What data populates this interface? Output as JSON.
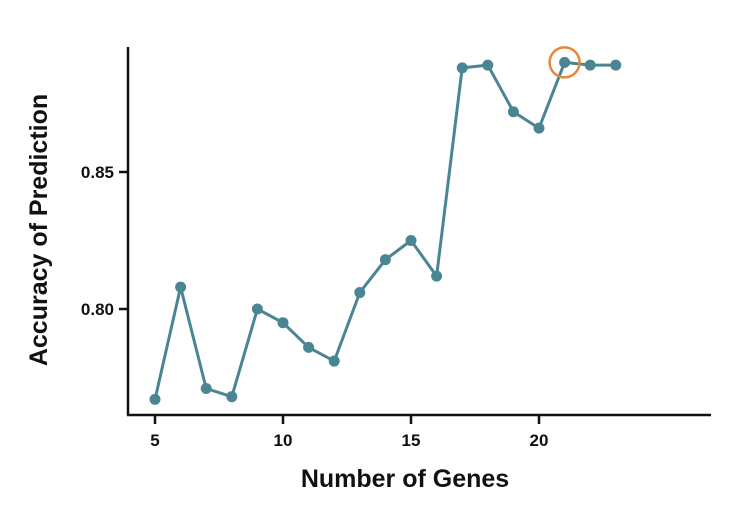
{
  "chart_data": {
    "type": "line",
    "title": "",
    "xlabel": "Number of Genes",
    "ylabel": "Accuracy of Prediction",
    "x": [
      5,
      6,
      7,
      8,
      9,
      10,
      11,
      12,
      13,
      14,
      15,
      16,
      17,
      18,
      19,
      20,
      21,
      22,
      23
    ],
    "series": [
      {
        "name": "Accuracy",
        "color": "#4a8593",
        "values": [
          0.767,
          0.808,
          0.771,
          0.768,
          0.8,
          0.795,
          0.786,
          0.781,
          0.806,
          0.818,
          0.825,
          0.812,
          0.888,
          0.889,
          0.872,
          0.866,
          0.89,
          0.889,
          0.889
        ]
      }
    ],
    "highlight": {
      "x": 21,
      "y": 0.89,
      "marker": "circle",
      "color": "#e8873a"
    },
    "xticks": [
      5,
      10,
      15,
      20
    ],
    "xtick_labels": [
      "5",
      "10",
      "15",
      "20"
    ],
    "yticks": [
      0.8,
      0.85
    ],
    "ytick_labels": [
      "0.80",
      "0.85"
    ],
    "xlim": [
      4.1,
      24.3
    ],
    "ylim": [
      0.7625,
      0.9065
    ],
    "grid": false,
    "legend": null
  }
}
